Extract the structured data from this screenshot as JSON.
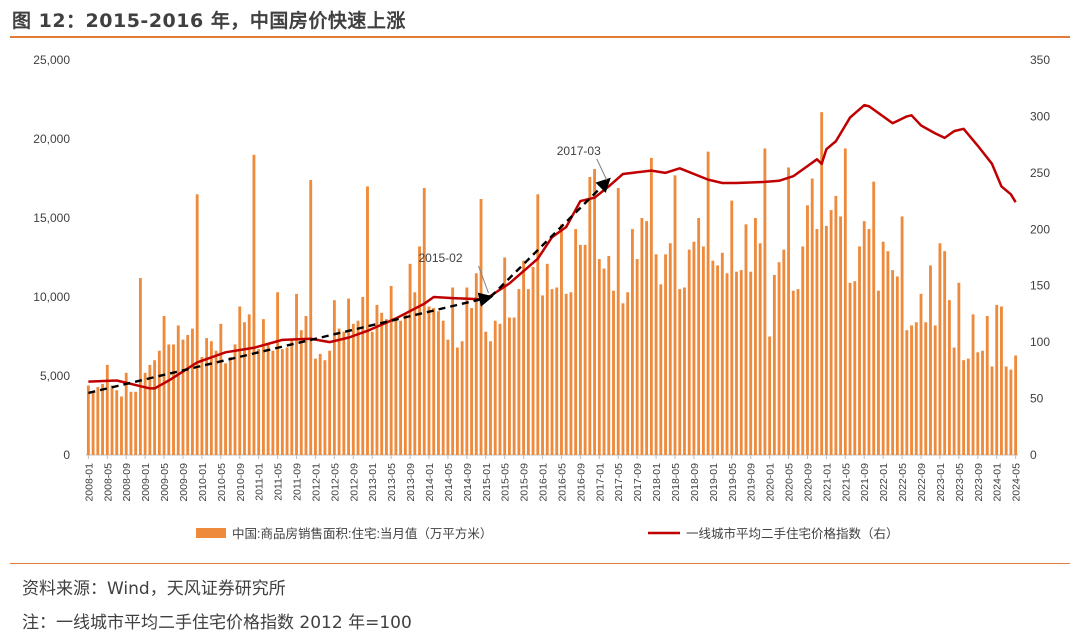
{
  "header": {
    "title": "图 12：2015-2016 年，中国房价快速上涨"
  },
  "footer": {
    "source": "资料来源：Wind，天风证券研究所",
    "note": "注：一线城市平均二手住宅价格指数 2012 年=100"
  },
  "colors": {
    "bar": "#ee8a3c",
    "line": "#c00000",
    "trend": "#000000",
    "rule": "#e07b39"
  },
  "chart_data": {
    "type": "bar+line",
    "y_left": {
      "min": 0,
      "max": 25000,
      "ticks": [
        0,
        5000,
        10000,
        15000,
        20000,
        25000
      ],
      "tick_labels": [
        "0",
        "5,000",
        "10,000",
        "15,000",
        "20,000",
        "25,000"
      ]
    },
    "y_right": {
      "min": 0,
      "max": 350,
      "ticks": [
        0,
        50,
        100,
        150,
        200,
        250,
        300,
        350
      ],
      "tick_labels": [
        "0",
        "50",
        "100",
        "150",
        "200",
        "250",
        "300",
        "350"
      ]
    },
    "x_start": "2008-01",
    "x_end": "2024-05",
    "x_tick_labels": [
      "2008-01",
      "2008-05",
      "2008-09",
      "2009-01",
      "2009-05",
      "2009-09",
      "2010-01",
      "2010-05",
      "2010-09",
      "2011-01",
      "2011-05",
      "2011-09",
      "2012-01",
      "2012-05",
      "2012-09",
      "2013-01",
      "2013-05",
      "2013-09",
      "2014-01",
      "2014-05",
      "2014-09",
      "2015-01",
      "2015-05",
      "2015-09",
      "2016-01",
      "2016-05",
      "2016-09",
      "2017-01",
      "2017-05",
      "2017-09",
      "2018-01",
      "2018-05",
      "2018-09",
      "2019-01",
      "2019-05",
      "2019-09",
      "2020-01",
      "2020-05",
      "2020-09",
      "2021-01",
      "2021-05",
      "2021-09",
      "2022-01",
      "2022-05",
      "2022-09",
      "2023-01",
      "2023-05",
      "2023-09",
      "2024-01",
      "2024-05"
    ],
    "series": [
      {
        "name": "中国:商品房销售面积:住宅:当月值（万平方米）",
        "type": "bar",
        "axis": "left",
        "years": [
          {
            "year": 2008,
            "values": [
              4400,
              4000,
              4300,
              4500,
              5700,
              4400,
              4100,
              3700,
              5200,
              4000,
              4000,
              11200
            ]
          },
          {
            "year": 2009,
            "values": [
              5200,
              5700,
              6000,
              6600,
              8800,
              7000,
              7000,
              8200,
              7300,
              7600,
              8000,
              16500
            ]
          },
          {
            "year": 2010,
            "values": [
              6200,
              7400,
              7200,
              6600,
              8300,
              5800,
              6200,
              7000,
              9400,
              8400,
              8900,
              19000
            ]
          },
          {
            "year": 2011,
            "values": [
              6700,
              8600,
              7000,
              6600,
              10300,
              6700,
              6800,
              7300,
              10200,
              7900,
              8800,
              17400
            ]
          },
          {
            "year": 2012,
            "values": [
              6100,
              6400,
              6000,
              6600,
              9800,
              8000,
              7800,
              9900,
              8300,
              8500,
              10000,
              17000
            ]
          },
          {
            "year": 2013,
            "values": [
              7800,
              9500,
              9000,
              8600,
              10700,
              8700,
              8500,
              8900,
              12100,
              10300,
              13200,
              16900
            ]
          },
          {
            "year": 2014,
            "values": [
              9400,
              9300,
              9100,
              8500,
              7300,
              10600,
              6800,
              7200,
              10600,
              9300,
              11500,
              16200
            ]
          },
          {
            "year": 2015,
            "values": [
              7800,
              7200,
              8500,
              8300,
              12500,
              8700,
              8700,
              10500,
              12300,
              10500,
              11900,
              16500
            ]
          },
          {
            "year": 2016,
            "values": [
              10100,
              12100,
              10500,
              10600,
              14600,
              10200,
              10300,
              14300,
              13300,
              13300,
              17600,
              18100
            ]
          },
          {
            "year": 2017,
            "values": [
              12400,
              11800,
              12600,
              10400,
              16900,
              9600,
              10300,
              14300,
              12400,
              15000,
              14800,
              18800
            ]
          },
          {
            "year": 2018,
            "values": [
              12700,
              10800,
              12700,
              13400,
              17700,
              10500,
              10600,
              13000,
              13500,
              15000,
              13200,
              19200
            ]
          },
          {
            "year": 2019,
            "values": [
              12300,
              12000,
              12800,
              11500,
              16100,
              11600,
              11700,
              14600,
              11600,
              15000,
              13400,
              19400
            ]
          },
          {
            "year": 2020,
            "values": [
              7500,
              11400,
              12200,
              13000,
              18200,
              10400,
              10500,
              13200,
              15800,
              17500,
              14300,
              21700
            ]
          },
          {
            "year": 2021,
            "values": [
              14500,
              15500,
              16400,
              15100,
              19400,
              10900,
              11000,
              13200,
              14800,
              14300,
              17300,
              10400
            ]
          },
          {
            "year": 2022,
            "values": [
              13500,
              12900,
              11700,
              11300,
              15100,
              7900,
              8200,
              8400,
              10200,
              8400,
              12000,
              8200
            ]
          },
          {
            "year": 2023,
            "values": [
              13400,
              12900,
              9800,
              6800,
              10900,
              6000,
              6100,
              8900,
              6500,
              6600,
              8800,
              5600
            ]
          },
          {
            "year": 2024,
            "values": [
              9500,
              9400,
              5600,
              5400,
              6300
            ]
          }
        ]
      },
      {
        "name": "一线城市平均二手住宅价格指数（右）",
        "type": "line",
        "axis": "right",
        "points": [
          [
            "2008-01",
            65
          ],
          [
            "2008-07",
            66
          ],
          [
            "2008-12",
            61
          ],
          [
            "2009-02",
            59
          ],
          [
            "2009-03",
            59
          ],
          [
            "2009-06",
            66
          ],
          [
            "2009-12",
            82
          ],
          [
            "2010-02",
            85
          ],
          [
            "2010-06",
            91
          ],
          [
            "2010-12",
            95
          ],
          [
            "2011-06",
            102
          ],
          [
            "2011-12",
            103
          ],
          [
            "2012-04",
            100
          ],
          [
            "2012-08",
            104
          ],
          [
            "2012-12",
            110
          ],
          [
            "2013-06",
            121
          ],
          [
            "2013-12",
            134
          ],
          [
            "2014-02",
            140
          ],
          [
            "2014-06",
            139
          ],
          [
            "2014-12",
            138
          ],
          [
            "2015-02",
            141
          ],
          [
            "2015-06",
            152
          ],
          [
            "2015-12",
            174
          ],
          [
            "2016-03",
            193
          ],
          [
            "2016-06",
            202
          ],
          [
            "2016-09",
            225
          ],
          [
            "2016-12",
            228
          ],
          [
            "2017-03",
            238
          ],
          [
            "2017-06",
            249
          ],
          [
            "2017-12",
            252
          ],
          [
            "2018-03",
            250
          ],
          [
            "2018-06",
            254
          ],
          [
            "2018-12",
            244
          ],
          [
            "2019-03",
            241
          ],
          [
            "2019-06",
            241
          ],
          [
            "2019-12",
            242
          ],
          [
            "2020-03",
            243
          ],
          [
            "2020-06",
            247
          ],
          [
            "2020-09",
            256
          ],
          [
            "2020-11",
            262
          ],
          [
            "2020-12",
            258
          ],
          [
            "2021-01",
            271
          ],
          [
            "2021-03",
            278
          ],
          [
            "2021-06",
            299
          ],
          [
            "2021-09",
            310
          ],
          [
            "2021-10",
            309
          ],
          [
            "2021-12",
            303
          ],
          [
            "2022-03",
            294
          ],
          [
            "2022-06",
            300
          ],
          [
            "2022-07",
            301
          ],
          [
            "2022-09",
            292
          ],
          [
            "2022-12",
            285
          ],
          [
            "2023-02",
            281
          ],
          [
            "2023-04",
            287
          ],
          [
            "2023-06",
            289
          ],
          [
            "2023-09",
            274
          ],
          [
            "2023-12",
            258
          ],
          [
            "2024-02",
            238
          ],
          [
            "2024-04",
            231
          ],
          [
            "2024-05",
            224
          ]
        ]
      }
    ],
    "trend_lines": [
      {
        "from": [
          "2008-01",
          55
        ],
        "to": [
          "2015-02",
          140
        ],
        "label": "2015-02"
      },
      {
        "from": [
          "2015-02",
          140
        ],
        "to": [
          "2017-03",
          244
        ],
        "label": "2017-03"
      }
    ],
    "annotations": [
      {
        "text": "2015-02",
        "at": "2015-02"
      },
      {
        "text": "2017-03",
        "at": "2017-03"
      }
    ],
    "legend": {
      "position": "bottom",
      "items": [
        {
          "label": "中国:商品房销售面积:住宅:当月值（万平方米）",
          "kind": "bar"
        },
        {
          "label": "一线城市平均二手住宅价格指数（右）",
          "kind": "line"
        }
      ]
    }
  }
}
